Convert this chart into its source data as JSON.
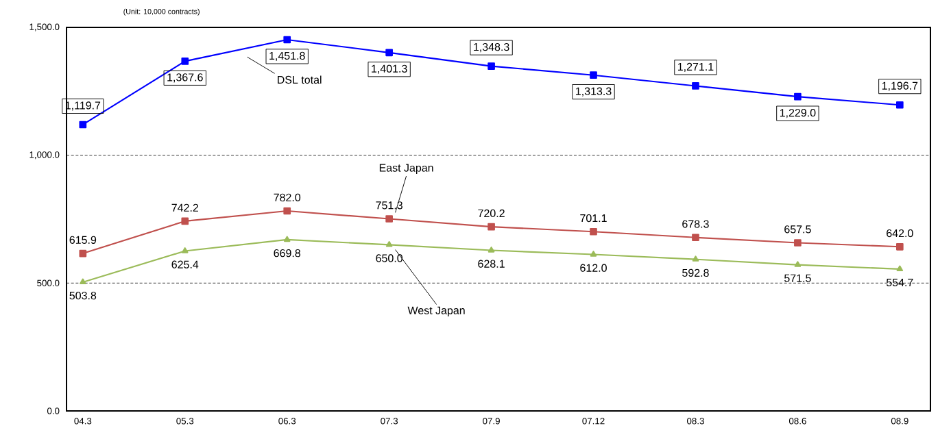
{
  "chart_data": {
    "type": "line",
    "categories": [
      "04.3",
      "05.3",
      "06.3",
      "07.3",
      "07.9",
      "07.12",
      "08.3",
      "08.6",
      "08.9"
    ],
    "series": [
      {
        "name": "DSL total",
        "color": "#0000ff",
        "marker": "square",
        "values": [
          1119.7,
          1367.6,
          1451.8,
          1401.3,
          1348.3,
          1313.3,
          1271.1,
          1229.0,
          1196.7
        ],
        "value_labels": [
          "1,119.7",
          "1,367.6",
          "1,451.8",
          "1,401.3",
          "1,348.3",
          "1,313.3",
          "1,271.1",
          "1,229.0",
          "1,196.7"
        ]
      },
      {
        "name": "East Japan",
        "color": "#c0504d",
        "marker": "square",
        "values": [
          615.9,
          742.2,
          782.0,
          751.3,
          720.2,
          701.1,
          678.3,
          657.5,
          642.0
        ],
        "value_labels": [
          "615.9",
          "742.2",
          "782.0",
          "751.3",
          "720.2",
          "701.1",
          "678.3",
          "657.5",
          "642.0"
        ]
      },
      {
        "name": "West Japan",
        "color": "#9bbb59",
        "marker": "triangle",
        "values": [
          503.8,
          625.4,
          669.8,
          650.0,
          628.1,
          612.0,
          592.8,
          571.5,
          554.7
        ],
        "value_labels": [
          "503.8",
          "625.4",
          "669.8",
          "650.0",
          "628.1",
          "612.0",
          "592.8",
          "571.5",
          "554.7"
        ]
      }
    ],
    "ylim": [
      0,
      1500
    ],
    "yticks": [
      {
        "value": 0,
        "label": "0.0"
      },
      {
        "value": 500,
        "label": "500.0"
      },
      {
        "value": 1000,
        "label": "1,000.0"
      },
      {
        "value": 1500,
        "label": "1,500.0"
      }
    ],
    "grid": "y",
    "legend": false,
    "line_style": "solid",
    "annotations": [
      "(Unit: 10,000 contracts)"
    ]
  }
}
